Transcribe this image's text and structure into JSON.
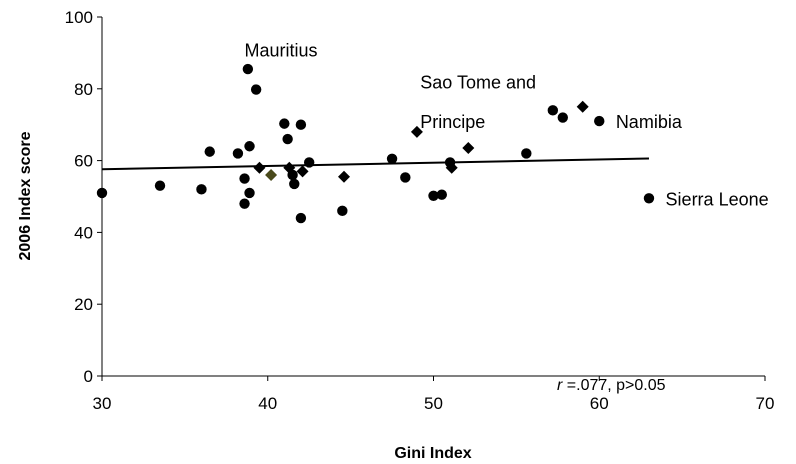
{
  "chart_data": {
    "type": "scatter",
    "title": "",
    "xlabel": "Gini Index",
    "ylabel": "2006 Index score",
    "xlim": [
      30,
      70
    ],
    "ylim": [
      0,
      100
    ],
    "x_ticks": [
      "30",
      "40",
      "50",
      "60",
      "70"
    ],
    "y_ticks": [
      "0",
      "20",
      "40",
      "60",
      "80",
      "100"
    ],
    "grid": false,
    "legend": "none",
    "series": [
      {
        "marker": "circle",
        "color": "#000000",
        "points": [
          [
            30.0,
            51
          ],
          [
            33.5,
            53
          ],
          [
            36.0,
            52
          ],
          [
            36.5,
            62.5
          ],
          [
            38.2,
            62
          ],
          [
            38.6,
            55
          ],
          [
            38.6,
            48
          ],
          [
            38.8,
            85.5
          ],
          [
            38.9,
            51
          ],
          [
            38.9,
            64
          ],
          [
            39.3,
            79.8
          ],
          [
            41.0,
            70.3
          ],
          [
            41.2,
            66
          ],
          [
            41.5,
            56
          ],
          [
            41.6,
            53.5
          ],
          [
            42.0,
            70
          ],
          [
            42.0,
            44
          ],
          [
            42.5,
            59.5
          ],
          [
            44.5,
            46
          ],
          [
            47.5,
            60.5
          ],
          [
            48.3,
            55.3
          ],
          [
            50.0,
            50.2
          ],
          [
            50.5,
            50.5
          ],
          [
            51.0,
            59.5
          ],
          [
            55.6,
            62
          ],
          [
            57.2,
            74
          ],
          [
            57.8,
            72
          ],
          [
            60.0,
            71
          ],
          [
            63.0,
            49.5
          ]
        ]
      },
      {
        "marker": "diamond",
        "color": "#000000",
        "points": [
          [
            39.5,
            58
          ],
          [
            41.3,
            58
          ],
          [
            42.1,
            57
          ],
          [
            44.6,
            55.5
          ],
          [
            49.0,
            68
          ],
          [
            51.1,
            58
          ],
          [
            52.1,
            63.5
          ],
          [
            59.0,
            75
          ]
        ]
      },
      {
        "marker": "diamond",
        "color": "#4a4a1c",
        "points": [
          [
            40.2,
            56
          ]
        ]
      }
    ],
    "trendline": {
      "x": [
        30,
        63
      ],
      "y": [
        57.6,
        60.6
      ],
      "color": "#000000"
    },
    "annotations": [
      {
        "text": "Mauritius",
        "x": 38.6,
        "y": 91
      },
      {
        "text": "Sao Tome and",
        "x": 49.2,
        "y": 82
      },
      {
        "text": "Principe",
        "x": 49.2,
        "y": 71
      },
      {
        "text": "Namibia",
        "x": 61.0,
        "y": 71
      },
      {
        "text": "Sierra Leone",
        "x": 64.0,
        "y": 49.5
      }
    ],
    "stat_note": {
      "r_symbol": "r",
      "text": " =.077, p>0.05"
    }
  }
}
